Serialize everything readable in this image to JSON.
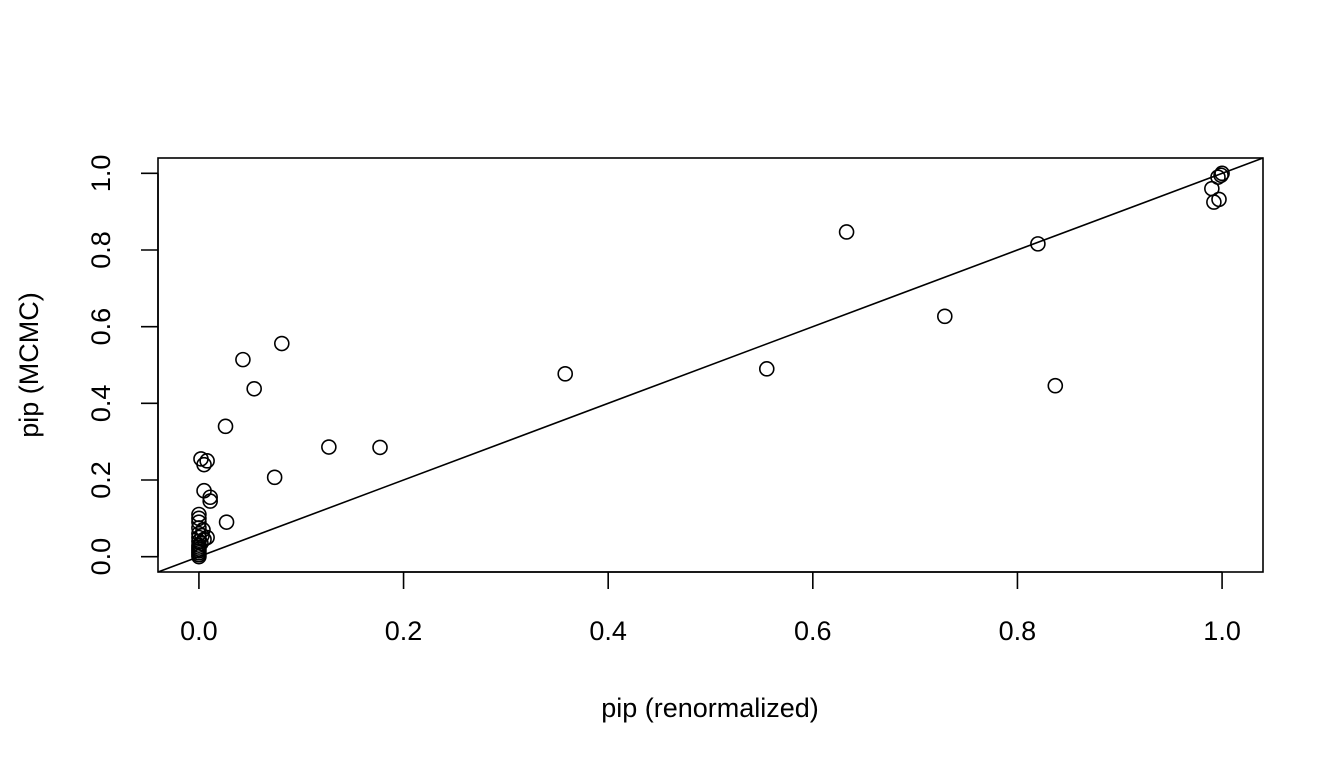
{
  "chart_data": {
    "type": "scatter",
    "title": "",
    "xlabel": "pip (renormalized)",
    "ylabel": "pip (MCMC)",
    "xlim": [
      -0.04,
      1.04
    ],
    "ylim": [
      -0.04,
      1.04
    ],
    "x_ticks": [
      0.0,
      0.2,
      0.4,
      0.6,
      0.8,
      1.0
    ],
    "y_ticks": [
      0.0,
      0.2,
      0.4,
      0.6,
      0.8,
      1.0
    ],
    "x_tick_labels": [
      "0.0",
      "0.2",
      "0.4",
      "0.6",
      "0.8",
      "1.0"
    ],
    "y_tick_labels": [
      "0.0",
      "0.2",
      "0.4",
      "0.6",
      "0.8",
      "1.0"
    ],
    "grid": false,
    "legend": "none",
    "reference_line": {
      "slope": 1,
      "intercept": 0
    },
    "points": [
      {
        "x": 0.0,
        "y": 0.0
      },
      {
        "x": 0.0,
        "y": 0.005
      },
      {
        "x": 0.0,
        "y": 0.01
      },
      {
        "x": 0.0,
        "y": 0.015
      },
      {
        "x": 0.0,
        "y": 0.02
      },
      {
        "x": 0.0,
        "y": 0.025
      },
      {
        "x": 0.0,
        "y": 0.03
      },
      {
        "x": 0.0,
        "y": 0.04
      },
      {
        "x": 0.0,
        "y": 0.05
      },
      {
        "x": 0.0,
        "y": 0.06
      },
      {
        "x": 0.0,
        "y": 0.075
      },
      {
        "x": 0.0,
        "y": 0.09
      },
      {
        "x": 0.0,
        "y": 0.1
      },
      {
        "x": 0.0,
        "y": 0.11
      },
      {
        "x": 0.002,
        "y": 0.035
      },
      {
        "x": 0.003,
        "y": 0.055
      },
      {
        "x": 0.004,
        "y": 0.07
      },
      {
        "x": 0.005,
        "y": 0.045
      },
      {
        "x": 0.008,
        "y": 0.05
      },
      {
        "x": 0.002,
        "y": 0.255
      },
      {
        "x": 0.005,
        "y": 0.24
      },
      {
        "x": 0.008,
        "y": 0.25
      },
      {
        "x": 0.005,
        "y": 0.172
      },
      {
        "x": 0.011,
        "y": 0.155
      },
      {
        "x": 0.011,
        "y": 0.145
      },
      {
        "x": 0.027,
        "y": 0.09
      },
      {
        "x": 0.026,
        "y": 0.34
      },
      {
        "x": 0.043,
        "y": 0.514
      },
      {
        "x": 0.054,
        "y": 0.438
      },
      {
        "x": 0.081,
        "y": 0.556
      },
      {
        "x": 0.074,
        "y": 0.207
      },
      {
        "x": 0.127,
        "y": 0.286
      },
      {
        "x": 0.177,
        "y": 0.285
      },
      {
        "x": 0.358,
        "y": 0.477
      },
      {
        "x": 0.555,
        "y": 0.49
      },
      {
        "x": 0.633,
        "y": 0.847
      },
      {
        "x": 0.729,
        "y": 0.627
      },
      {
        "x": 0.82,
        "y": 0.816
      },
      {
        "x": 0.837,
        "y": 0.446
      },
      {
        "x": 0.99,
        "y": 0.96
      },
      {
        "x": 0.992,
        "y": 0.925
      },
      {
        "x": 0.996,
        "y": 0.99
      },
      {
        "x": 0.997,
        "y": 0.932
      },
      {
        "x": 0.999,
        "y": 0.995
      },
      {
        "x": 1.0,
        "y": 1.0
      }
    ]
  }
}
